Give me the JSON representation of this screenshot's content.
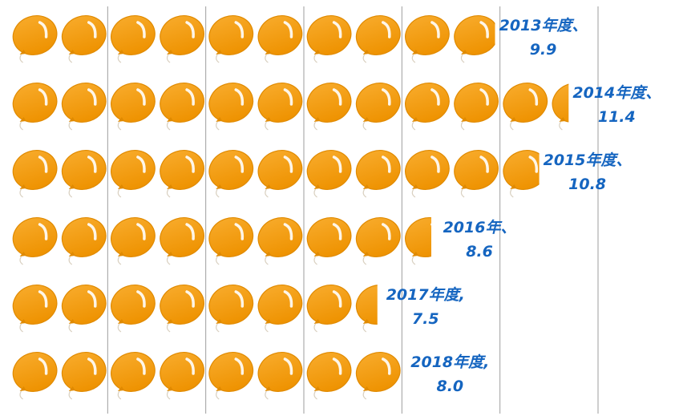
{
  "chart_data": {
    "type": "bar",
    "orientation": "horizontal",
    "categories": [
      "2013年度",
      "2014年度",
      "2015年度",
      "2016年",
      "2017年度",
      "2018年度"
    ],
    "values": [
      9.9,
      11.4,
      10.8,
      8.6,
      7.5,
      8.0
    ],
    "data_labels": [
      {
        "category": "2013年度、",
        "value": "9.9"
      },
      {
        "category": "2014年度、",
        "value": "11.4"
      },
      {
        "category": "2015年度、",
        "value": "10.8"
      },
      {
        "category": "2016年、",
        "value": "8.6"
      },
      {
        "category": "2017年度,",
        "value": "7.5"
      },
      {
        "category": "2018年度,",
        "value": "8.0"
      }
    ],
    "xlim": [
      0,
      12
    ],
    "grid": true,
    "bar_fill": "balloon pictograph",
    "colors": {
      "balloon": "#F39C12",
      "balloon_outline": "#E08A00",
      "label": "#1565C0",
      "grid": "#9E9E9E"
    }
  }
}
